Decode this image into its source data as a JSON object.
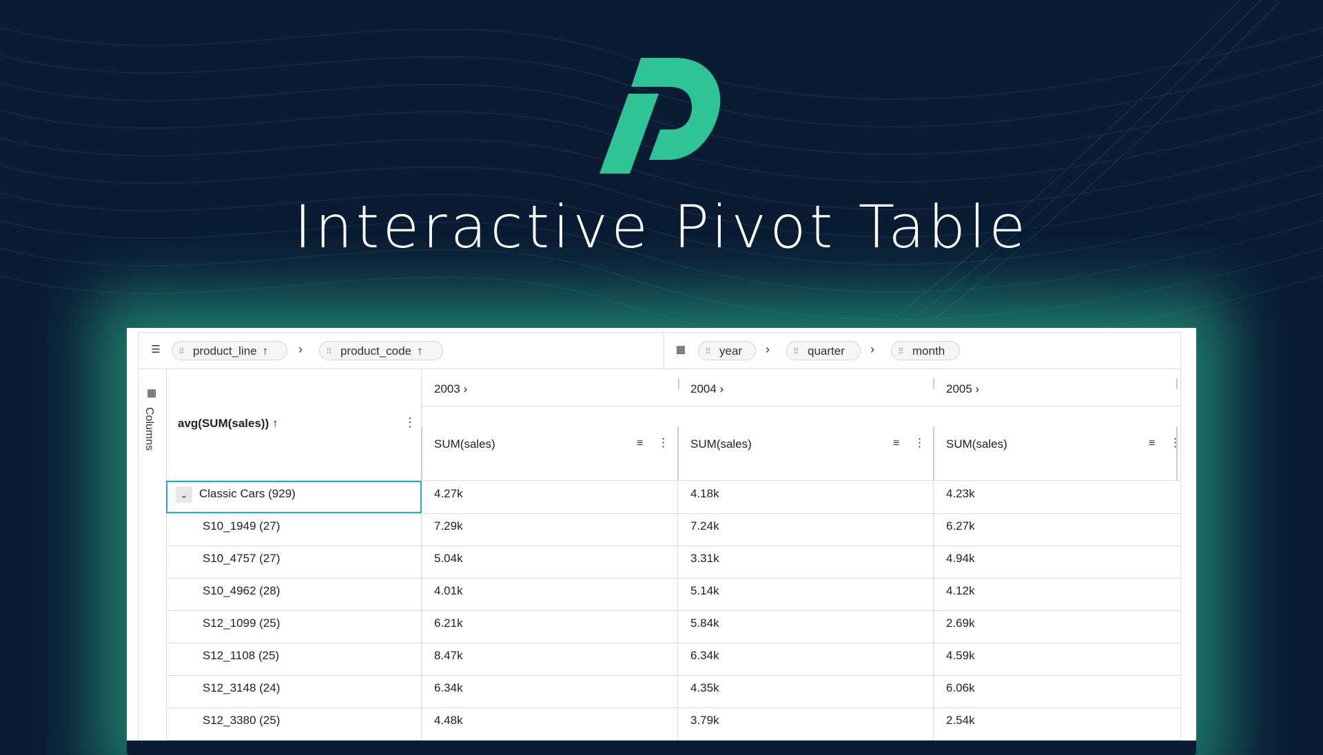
{
  "hero": {
    "title": "Interactive Pivot Table"
  },
  "toolbar": {
    "rows_pills": [
      {
        "label": "product_line",
        "arrow": "↑"
      },
      {
        "label": "product_code",
        "arrow": "↑"
      }
    ],
    "column_pills": [
      {
        "label": "year"
      },
      {
        "label": "quarter"
      },
      {
        "label": "month"
      }
    ],
    "separator": "›"
  },
  "sidebar": {
    "label": "Columns"
  },
  "header": {
    "row_measure": "avg(SUM(sales)) ↑",
    "years": [
      "2003 ›",
      "2004 ›",
      "2005 ›"
    ],
    "metric": "SUM(sales)"
  },
  "rows": [
    {
      "label": "Classic Cars (929)",
      "values": [
        "4.27k",
        "4.18k",
        "4.23k"
      ],
      "group": true
    },
    {
      "label": "S10_1949 (27)",
      "values": [
        "7.29k",
        "7.24k",
        "6.27k"
      ]
    },
    {
      "label": "S10_4757 (27)",
      "values": [
        "5.04k",
        "3.31k",
        "4.94k"
      ]
    },
    {
      "label": "S10_4962 (28)",
      "values": [
        "4.01k",
        "5.14k",
        "4.12k"
      ]
    },
    {
      "label": "S12_1099 (25)",
      "values": [
        "6.21k",
        "5.84k",
        "2.69k"
      ]
    },
    {
      "label": "S12_1108 (25)",
      "values": [
        "8.47k",
        "6.34k",
        "4.59k"
      ]
    },
    {
      "label": "S12_3148 (24)",
      "values": [
        "6.34k",
        "4.35k",
        "6.06k"
      ]
    },
    {
      "label": "S12_3380 (25)",
      "values": [
        "4.48k",
        "3.79k",
        "2.54k"
      ]
    }
  ],
  "colors": {
    "background": "#0a1b33",
    "accent": "#2ec496",
    "selection": "#2aa8c9"
  }
}
